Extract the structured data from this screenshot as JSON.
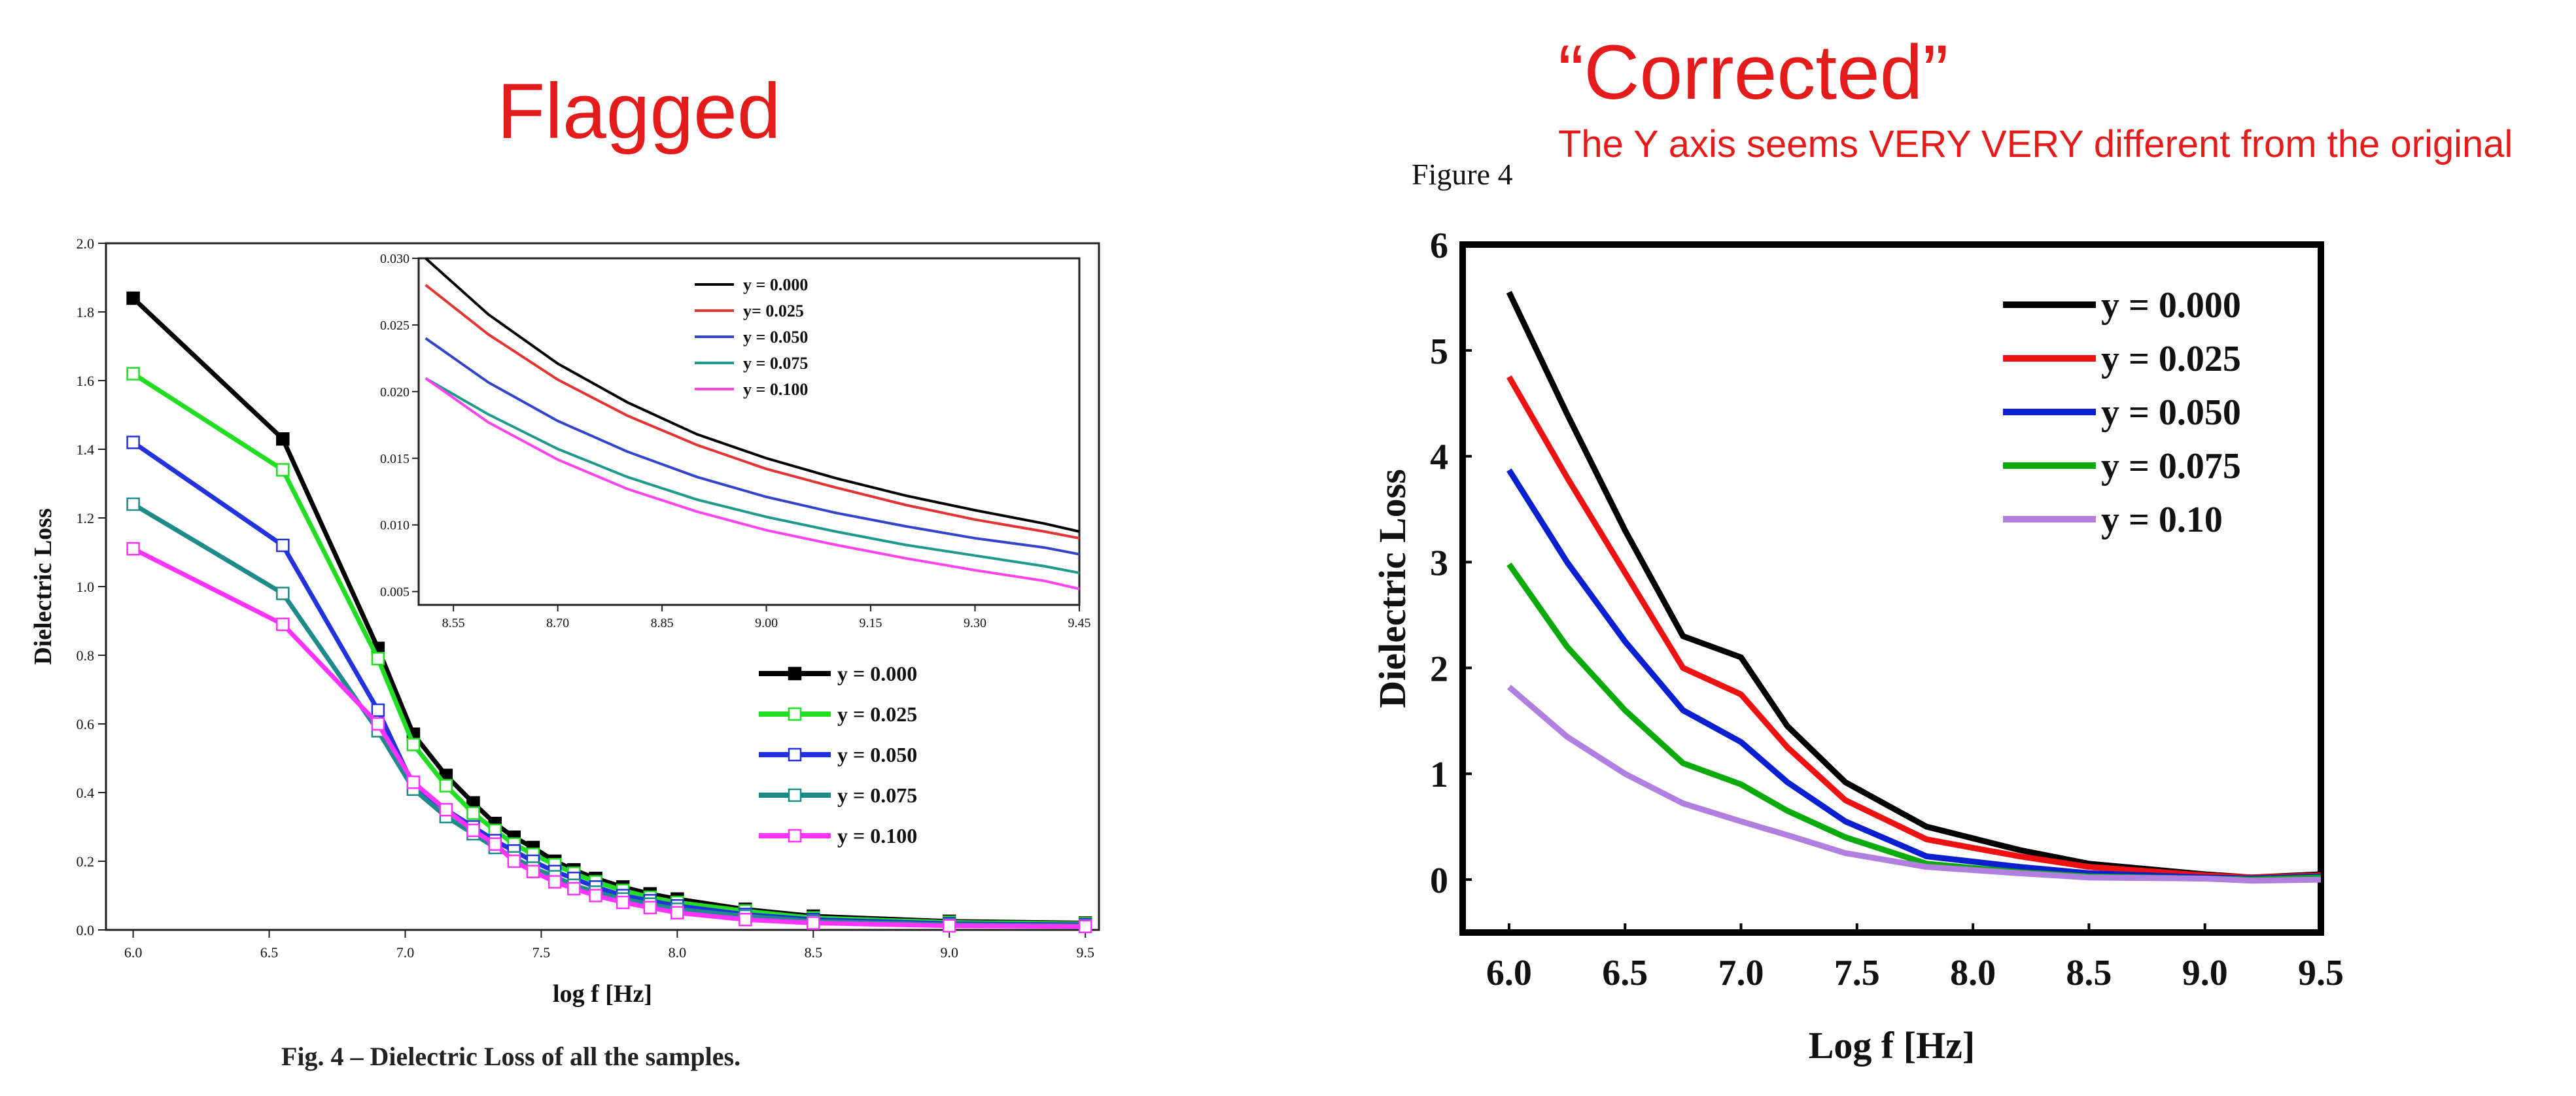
{
  "headings": {
    "flagged": "Flagged",
    "corrected": "“Corrected”",
    "note": "The Y axis seems VERY VERY different from the original",
    "figure_label": "Figure 4",
    "caption": "Fig. 4 – Dielectric Loss of all the samples."
  },
  "colors": {
    "heading": "#e31b1b"
  },
  "chart_data": [
    {
      "type": "line",
      "xlabel": "log f [Hz]",
      "ylabel": "Dielectric Loss",
      "xlim": [
        5.9,
        9.55
      ],
      "ylim": [
        0,
        2.0
      ],
      "xticks": [
        "6.0",
        "6.5",
        "7.0",
        "7.5",
        "8.0",
        "8.5",
        "9.0",
        "9.5"
      ],
      "yticks": [
        "0.0",
        "0.2",
        "0.4",
        "0.6",
        "0.8",
        "1.0",
        "1.2",
        "1.4",
        "1.6",
        "1.8",
        "2.0"
      ],
      "legend_position": "lower-right",
      "x": [
        6.0,
        6.55,
        6.9,
        7.03,
        7.15,
        7.25,
        7.33,
        7.4,
        7.47,
        7.55,
        7.62,
        7.7,
        7.8,
        7.9,
        8.0,
        8.25,
        8.5,
        9.0,
        9.5
      ],
      "series": [
        {
          "name": "y = 0.000",
          "color": "#000000",
          "marker": "filled-square",
          "values": [
            1.84,
            1.43,
            0.82,
            0.57,
            0.45,
            0.37,
            0.31,
            0.27,
            0.24,
            0.2,
            0.175,
            0.15,
            0.125,
            0.105,
            0.09,
            0.06,
            0.04,
            0.025,
            0.02
          ]
        },
        {
          "name": "y = 0.025",
          "color": "#22dd22",
          "marker": "open-square",
          "values": [
            1.62,
            1.34,
            0.79,
            0.54,
            0.42,
            0.34,
            0.29,
            0.25,
            0.22,
            0.19,
            0.165,
            0.14,
            0.115,
            0.095,
            0.08,
            0.055,
            0.035,
            0.022,
            0.018
          ]
        },
        {
          "name": "y = 0.050",
          "color": "#2233dd",
          "marker": "open-square",
          "values": [
            1.42,
            1.12,
            0.64,
            0.42,
            0.35,
            0.3,
            0.26,
            0.23,
            0.2,
            0.17,
            0.15,
            0.125,
            0.1,
            0.085,
            0.07,
            0.045,
            0.03,
            0.018,
            0.015
          ]
        },
        {
          "name": "y = 0.075",
          "color": "#1e8a8a",
          "marker": "open-square",
          "values": [
            1.24,
            0.98,
            0.58,
            0.41,
            0.33,
            0.28,
            0.24,
            0.21,
            0.18,
            0.155,
            0.13,
            0.11,
            0.09,
            0.075,
            0.06,
            0.04,
            0.025,
            0.015,
            0.012
          ]
        },
        {
          "name": "y = 0.100",
          "color": "#ff33ff",
          "marker": "open-square",
          "values": [
            1.11,
            0.89,
            0.6,
            0.43,
            0.35,
            0.29,
            0.25,
            0.2,
            0.17,
            0.14,
            0.12,
            0.1,
            0.08,
            0.065,
            0.05,
            0.03,
            0.02,
            0.012,
            0.01
          ]
        }
      ],
      "inset": {
        "type": "line",
        "xlim": [
          8.5,
          9.45
        ],
        "ylim": [
          0.004,
          0.03
        ],
        "xticks": [
          "8.55",
          "8.70",
          "8.85",
          "9.00",
          "9.15",
          "9.30",
          "9.45"
        ],
        "yticks": [
          "0.005",
          "0.010",
          "0.015",
          "0.020",
          "0.025",
          "0.030"
        ],
        "legend_position": "top-right",
        "x": [
          8.51,
          8.6,
          8.7,
          8.8,
          8.9,
          9.0,
          9.1,
          9.2,
          9.3,
          9.4,
          9.45
        ],
        "series": [
          {
            "name": "y = 0.000",
            "color": "#000000",
            "values": [
              0.03,
              0.0258,
              0.0221,
              0.0192,
              0.0168,
              0.015,
              0.0135,
              0.0122,
              0.0111,
              0.0101,
              0.0095
            ]
          },
          {
            "name": "y= 0.025",
            "color": "#e33333",
            "values": [
              0.028,
              0.0243,
              0.0209,
              0.0182,
              0.016,
              0.0142,
              0.0128,
              0.0115,
              0.0104,
              0.0095,
              0.009
            ]
          },
          {
            "name": "y = 0.050",
            "color": "#3344cc",
            "values": [
              0.024,
              0.0207,
              0.0178,
              0.0155,
              0.0136,
              0.0121,
              0.0109,
              0.0099,
              0.009,
              0.0083,
              0.0078
            ]
          },
          {
            "name": "y = 0.075",
            "color": "#1e9a8a",
            "values": [
              0.021,
              0.0183,
              0.0157,
              0.0136,
              0.0119,
              0.0106,
              0.0095,
              0.0085,
              0.0077,
              0.0069,
              0.0064
            ]
          },
          {
            "name": "y = 0.100",
            "color": "#ff44ee",
            "values": [
              0.021,
              0.0177,
              0.0149,
              0.0127,
              0.011,
              0.0096,
              0.0085,
              0.0075,
              0.0066,
              0.0058,
              0.0052
            ]
          }
        ]
      }
    },
    {
      "type": "line",
      "xlabel": "Log f [Hz]",
      "ylabel": "Dielectric Loss",
      "xlim": [
        5.8,
        9.5
      ],
      "ylim": [
        -0.5,
        6
      ],
      "xticks": [
        "6.0",
        "6.5",
        "7.0",
        "7.5",
        "8.0",
        "8.5",
        "9.0",
        "9.5"
      ],
      "yticks": [
        "0",
        "1",
        "2",
        "3",
        "4",
        "5",
        "6"
      ],
      "legend_position": "top-right",
      "x": [
        6.0,
        6.25,
        6.5,
        6.75,
        7.0,
        7.2,
        7.45,
        7.8,
        8.2,
        8.5,
        9.0,
        9.2,
        9.5
      ],
      "series": [
        {
          "name": "y = 0.000",
          "color": "#000000",
          "values": [
            5.55,
            4.4,
            3.3,
            2.3,
            2.1,
            1.45,
            0.92,
            0.5,
            0.28,
            0.15,
            0.05,
            0.02,
            0.05
          ]
        },
        {
          "name": "y = 0.025",
          "color": "#ee1111",
          "values": [
            4.75,
            3.8,
            2.9,
            2.0,
            1.75,
            1.25,
            0.75,
            0.38,
            0.22,
            0.12,
            0.04,
            0.02,
            0.04
          ]
        },
        {
          "name": "y = 0.050",
          "color": "#0a1fd0",
          "values": [
            3.87,
            3.0,
            2.25,
            1.6,
            1.3,
            0.92,
            0.55,
            0.22,
            0.12,
            0.06,
            0.02,
            0.01,
            0.03
          ]
        },
        {
          "name": "y = 0.075",
          "color": "#0aaa0a",
          "values": [
            2.98,
            2.2,
            1.6,
            1.1,
            0.9,
            0.65,
            0.4,
            0.15,
            0.07,
            0.03,
            0.01,
            0.0,
            0.02
          ]
        },
        {
          "name": "y = 0.10",
          "color": "#b07fe0",
          "values": [
            1.82,
            1.35,
            1.0,
            0.72,
            0.55,
            0.42,
            0.25,
            0.12,
            0.06,
            0.02,
            0.01,
            -0.01,
            0.0
          ]
        }
      ]
    }
  ]
}
